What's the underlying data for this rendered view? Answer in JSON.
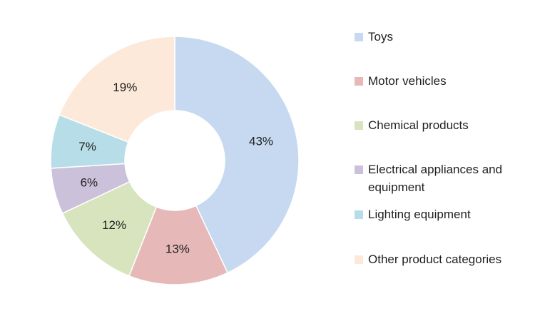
{
  "chart_data": {
    "type": "pie",
    "donut": true,
    "categories": [
      "Toys",
      "Motor vehicles",
      "Chemical products",
      "Electrical appliances and equipment",
      "Lighting equipment",
      "Other product categories"
    ],
    "values": [
      43,
      13,
      12,
      6,
      7,
      19
    ],
    "labels": [
      "43%",
      "13%",
      "12%",
      "6%",
      "7%",
      "19%"
    ],
    "colors": [
      "#c6d9f1",
      "#e6b9b8",
      "#d7e4bd",
      "#ccc1da",
      "#b7dee8",
      "#fde9d9"
    ],
    "legend_position": "right",
    "start_angle": "12 o'clock",
    "direction": "clockwise"
  },
  "legend": {
    "items": [
      {
        "label": "Toys",
        "color": "#c6d9f1"
      },
      {
        "label": "Motor vehicles",
        "color": "#e6b9b8"
      },
      {
        "label": "Chemical products",
        "color": "#d7e4bd"
      },
      {
        "label": "Electrical appliances and equipment",
        "color": "#ccc1da"
      },
      {
        "label": "Lighting equipment",
        "color": "#b7dee8"
      },
      {
        "label": "Other product categories",
        "color": "#fde9d9"
      }
    ]
  }
}
